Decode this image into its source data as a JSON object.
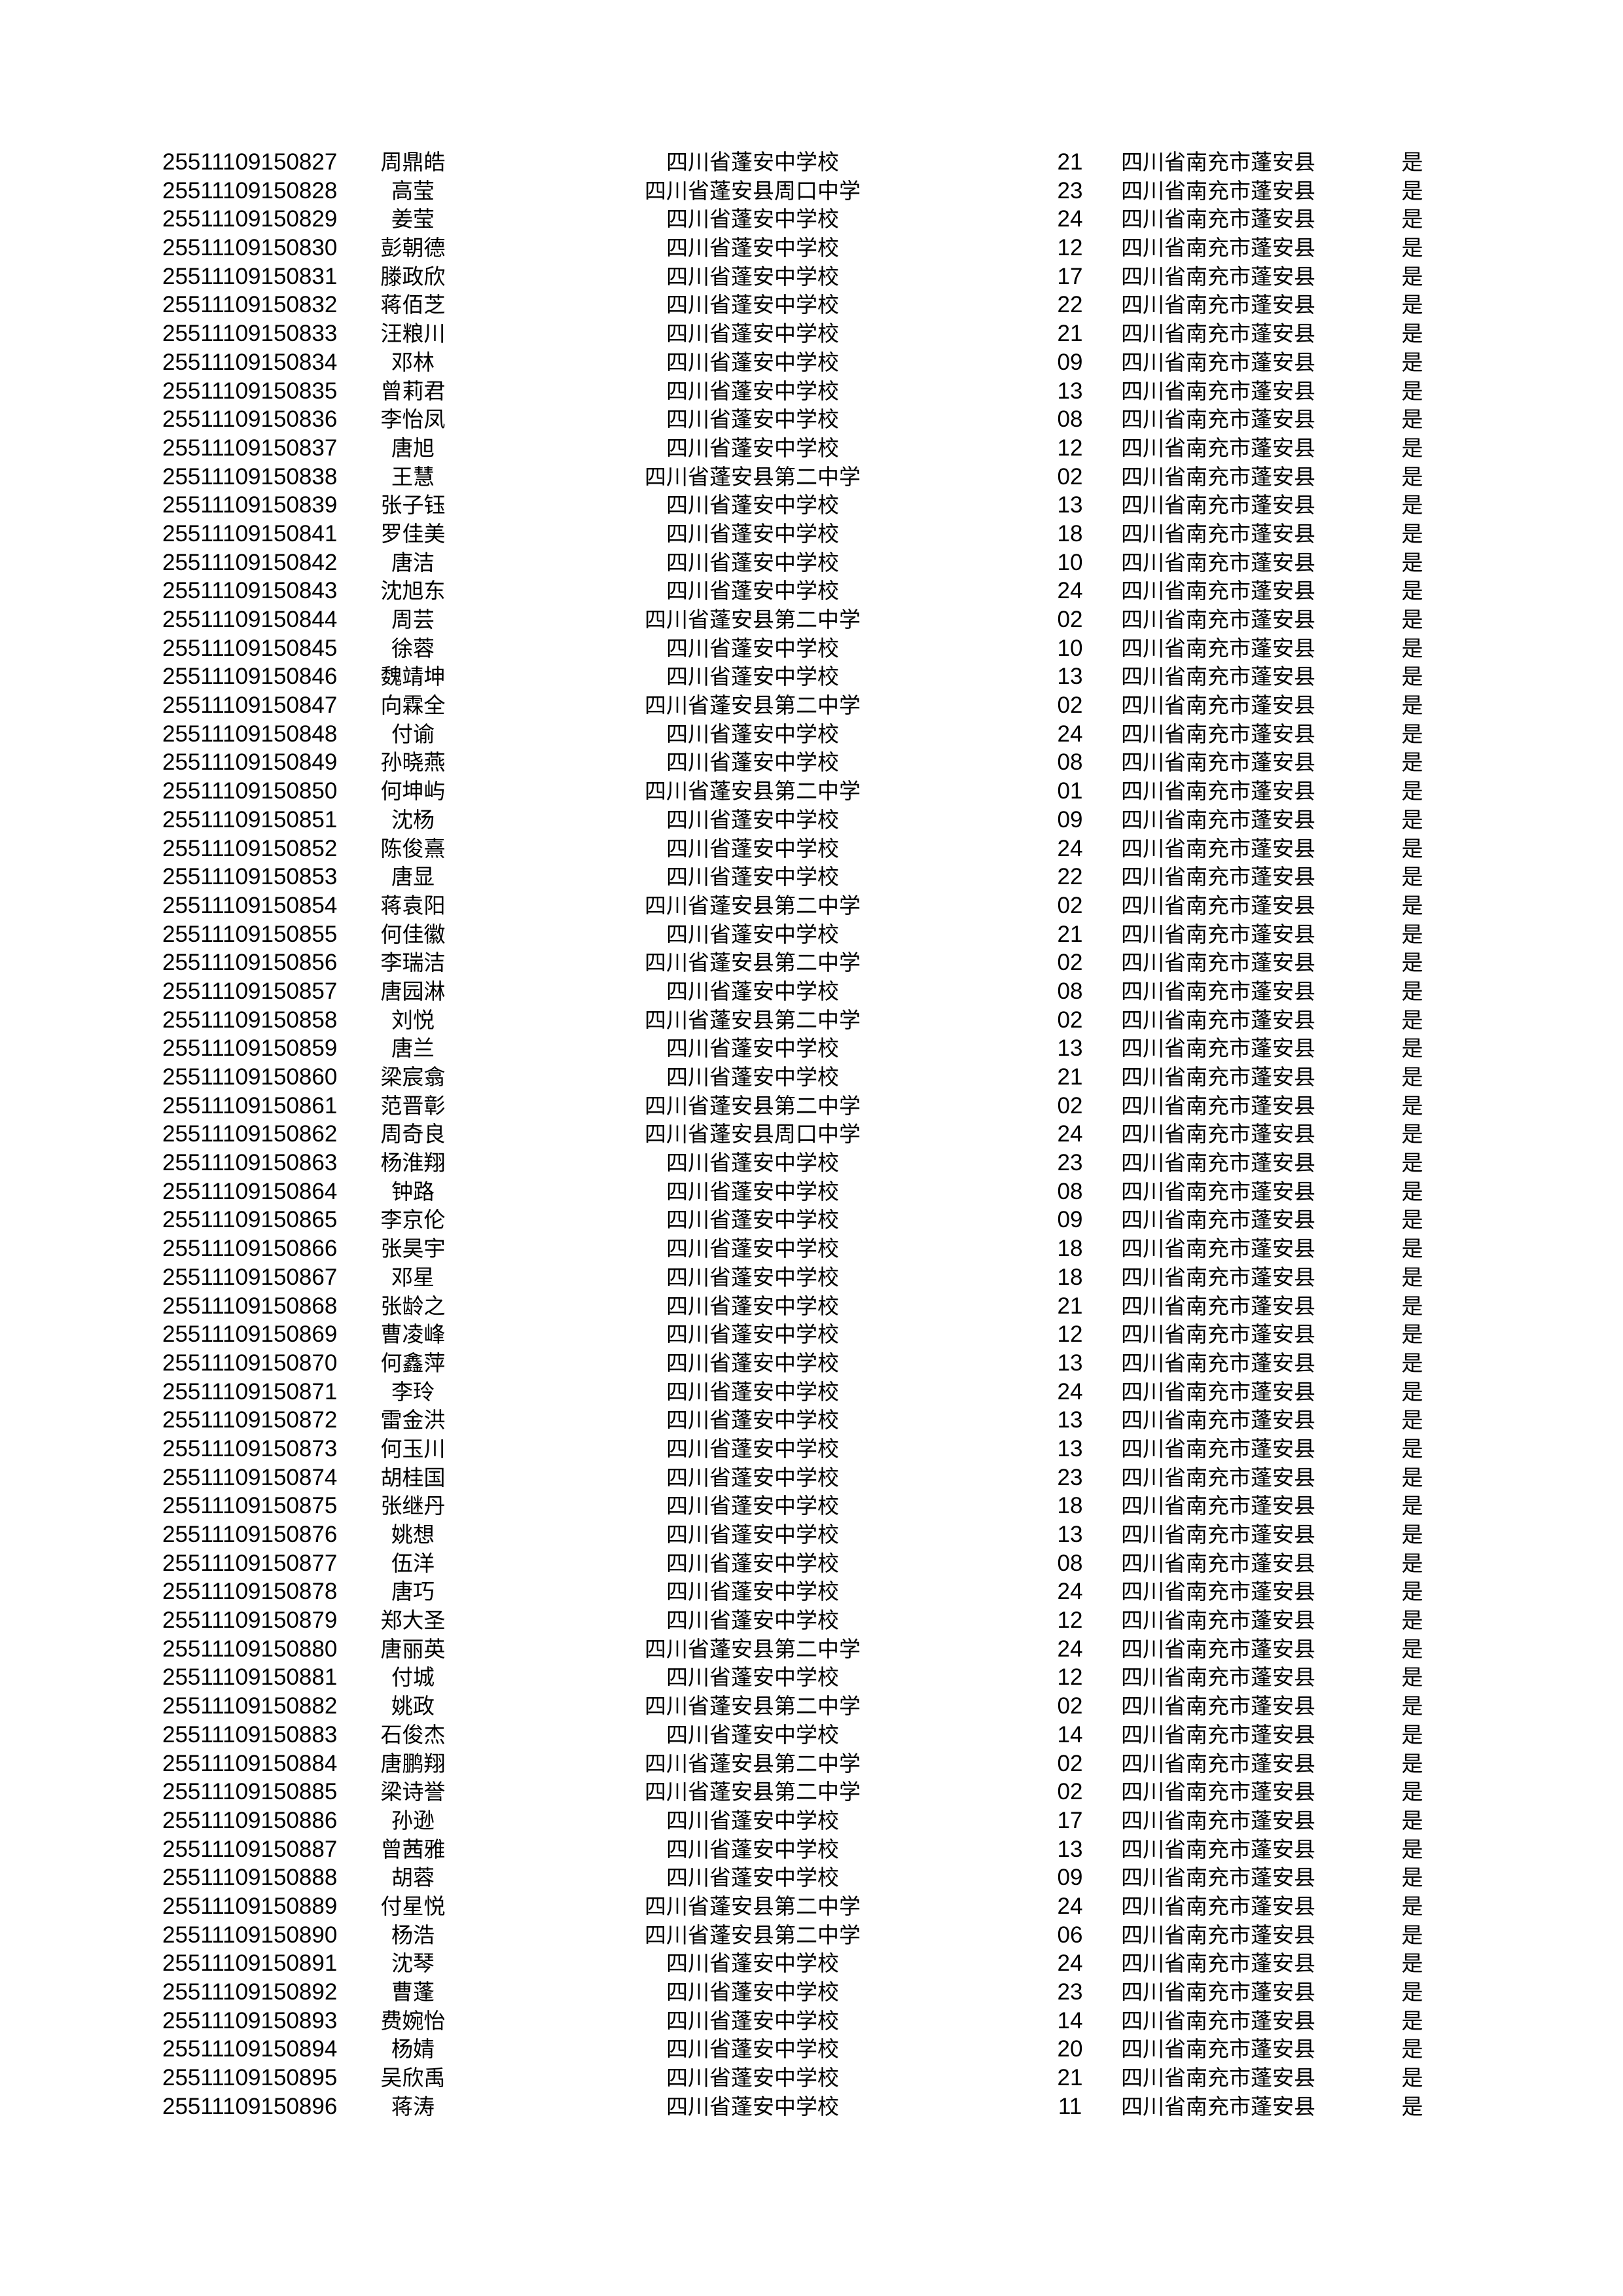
{
  "rows": [
    [
      "25511109150827",
      "周鼎皓",
      "四川省蓬安中学校",
      "21",
      "四川省南充市蓬安县",
      "是"
    ],
    [
      "25511109150828",
      "高莹",
      "四川省蓬安县周口中学",
      "23",
      "四川省南充市蓬安县",
      "是"
    ],
    [
      "25511109150829",
      "姜莹",
      "四川省蓬安中学校",
      "24",
      "四川省南充市蓬安县",
      "是"
    ],
    [
      "25511109150830",
      "彭朝德",
      "四川省蓬安中学校",
      "12",
      "四川省南充市蓬安县",
      "是"
    ],
    [
      "25511109150831",
      "滕政欣",
      "四川省蓬安中学校",
      "17",
      "四川省南充市蓬安县",
      "是"
    ],
    [
      "25511109150832",
      "蒋佰芝",
      "四川省蓬安中学校",
      "22",
      "四川省南充市蓬安县",
      "是"
    ],
    [
      "25511109150833",
      "汪粮川",
      "四川省蓬安中学校",
      "21",
      "四川省南充市蓬安县",
      "是"
    ],
    [
      "25511109150834",
      "邓林",
      "四川省蓬安中学校",
      "09",
      "四川省南充市蓬安县",
      "是"
    ],
    [
      "25511109150835",
      "曾莉君",
      "四川省蓬安中学校",
      "13",
      "四川省南充市蓬安县",
      "是"
    ],
    [
      "25511109150836",
      "李怡凤",
      "四川省蓬安中学校",
      "08",
      "四川省南充市蓬安县",
      "是"
    ],
    [
      "25511109150837",
      "唐旭",
      "四川省蓬安中学校",
      "12",
      "四川省南充市蓬安县",
      "是"
    ],
    [
      "25511109150838",
      "王慧",
      "四川省蓬安县第二中学",
      "02",
      "四川省南充市蓬安县",
      "是"
    ],
    [
      "25511109150839",
      "张子钰",
      "四川省蓬安中学校",
      "13",
      "四川省南充市蓬安县",
      "是"
    ],
    [
      "25511109150841",
      "罗佳美",
      "四川省蓬安中学校",
      "18",
      "四川省南充市蓬安县",
      "是"
    ],
    [
      "25511109150842",
      "唐洁",
      "四川省蓬安中学校",
      "10",
      "四川省南充市蓬安县",
      "是"
    ],
    [
      "25511109150843",
      "沈旭东",
      "四川省蓬安中学校",
      "24",
      "四川省南充市蓬安县",
      "是"
    ],
    [
      "25511109150844",
      "周芸",
      "四川省蓬安县第二中学",
      "02",
      "四川省南充市蓬安县",
      "是"
    ],
    [
      "25511109150845",
      "徐蓉",
      "四川省蓬安中学校",
      "10",
      "四川省南充市蓬安县",
      "是"
    ],
    [
      "25511109150846",
      "魏靖坤",
      "四川省蓬安中学校",
      "13",
      "四川省南充市蓬安县",
      "是"
    ],
    [
      "25511109150847",
      "向霖全",
      "四川省蓬安县第二中学",
      "02",
      "四川省南充市蓬安县",
      "是"
    ],
    [
      "25511109150848",
      "付谕",
      "四川省蓬安中学校",
      "24",
      "四川省南充市蓬安县",
      "是"
    ],
    [
      "25511109150849",
      "孙晓燕",
      "四川省蓬安中学校",
      "08",
      "四川省南充市蓬安县",
      "是"
    ],
    [
      "25511109150850",
      "何坤屿",
      "四川省蓬安县第二中学",
      "01",
      "四川省南充市蓬安县",
      "是"
    ],
    [
      "25511109150851",
      "沈杨",
      "四川省蓬安中学校",
      "09",
      "四川省南充市蓬安县",
      "是"
    ],
    [
      "25511109150852",
      "陈俊熹",
      "四川省蓬安中学校",
      "24",
      "四川省南充市蓬安县",
      "是"
    ],
    [
      "25511109150853",
      "唐显",
      "四川省蓬安中学校",
      "22",
      "四川省南充市蓬安县",
      "是"
    ],
    [
      "25511109150854",
      "蒋袁阳",
      "四川省蓬安县第二中学",
      "02",
      "四川省南充市蓬安县",
      "是"
    ],
    [
      "25511109150855",
      "何佳徽",
      "四川省蓬安中学校",
      "21",
      "四川省南充市蓬安县",
      "是"
    ],
    [
      "25511109150856",
      "李瑞洁",
      "四川省蓬安县第二中学",
      "02",
      "四川省南充市蓬安县",
      "是"
    ],
    [
      "25511109150857",
      "唐园淋",
      "四川省蓬安中学校",
      "08",
      "四川省南充市蓬安县",
      "是"
    ],
    [
      "25511109150858",
      "刘悦",
      "四川省蓬安县第二中学",
      "02",
      "四川省南充市蓬安县",
      "是"
    ],
    [
      "25511109150859",
      "唐兰",
      "四川省蓬安中学校",
      "13",
      "四川省南充市蓬安县",
      "是"
    ],
    [
      "25511109150860",
      "梁宸翕",
      "四川省蓬安中学校",
      "21",
      "四川省南充市蓬安县",
      "是"
    ],
    [
      "25511109150861",
      "范晋彰",
      "四川省蓬安县第二中学",
      "02",
      "四川省南充市蓬安县",
      "是"
    ],
    [
      "25511109150862",
      "周奇良",
      "四川省蓬安县周口中学",
      "24",
      "四川省南充市蓬安县",
      "是"
    ],
    [
      "25511109150863",
      "杨淮翔",
      "四川省蓬安中学校",
      "23",
      "四川省南充市蓬安县",
      "是"
    ],
    [
      "25511109150864",
      "钟路",
      "四川省蓬安中学校",
      "08",
      "四川省南充市蓬安县",
      "是"
    ],
    [
      "25511109150865",
      "李京伦",
      "四川省蓬安中学校",
      "09",
      "四川省南充市蓬安县",
      "是"
    ],
    [
      "25511109150866",
      "张昊宇",
      "四川省蓬安中学校",
      "18",
      "四川省南充市蓬安县",
      "是"
    ],
    [
      "25511109150867",
      "邓星",
      "四川省蓬安中学校",
      "18",
      "四川省南充市蓬安县",
      "是"
    ],
    [
      "25511109150868",
      "张龄之",
      "四川省蓬安中学校",
      "21",
      "四川省南充市蓬安县",
      "是"
    ],
    [
      "25511109150869",
      "曹凌峰",
      "四川省蓬安中学校",
      "12",
      "四川省南充市蓬安县",
      "是"
    ],
    [
      "25511109150870",
      "何鑫萍",
      "四川省蓬安中学校",
      "13",
      "四川省南充市蓬安县",
      "是"
    ],
    [
      "25511109150871",
      "李玲",
      "四川省蓬安中学校",
      "24",
      "四川省南充市蓬安县",
      "是"
    ],
    [
      "25511109150872",
      "雷金洪",
      "四川省蓬安中学校",
      "13",
      "四川省南充市蓬安县",
      "是"
    ],
    [
      "25511109150873",
      "何玉川",
      "四川省蓬安中学校",
      "13",
      "四川省南充市蓬安县",
      "是"
    ],
    [
      "25511109150874",
      "胡桂国",
      "四川省蓬安中学校",
      "23",
      "四川省南充市蓬安县",
      "是"
    ],
    [
      "25511109150875",
      "张继丹",
      "四川省蓬安中学校",
      "18",
      "四川省南充市蓬安县",
      "是"
    ],
    [
      "25511109150876",
      "姚想",
      "四川省蓬安中学校",
      "13",
      "四川省南充市蓬安县",
      "是"
    ],
    [
      "25511109150877",
      "伍洋",
      "四川省蓬安中学校",
      "08",
      "四川省南充市蓬安县",
      "是"
    ],
    [
      "25511109150878",
      "唐巧",
      "四川省蓬安中学校",
      "24",
      "四川省南充市蓬安县",
      "是"
    ],
    [
      "25511109150879",
      "郑大圣",
      "四川省蓬安中学校",
      "12",
      "四川省南充市蓬安县",
      "是"
    ],
    [
      "25511109150880",
      "唐丽英",
      "四川省蓬安县第二中学",
      "24",
      "四川省南充市蓬安县",
      "是"
    ],
    [
      "25511109150881",
      "付城",
      "四川省蓬安中学校",
      "12",
      "四川省南充市蓬安县",
      "是"
    ],
    [
      "25511109150882",
      "姚政",
      "四川省蓬安县第二中学",
      "02",
      "四川省南充市蓬安县",
      "是"
    ],
    [
      "25511109150883",
      "石俊杰",
      "四川省蓬安中学校",
      "14",
      "四川省南充市蓬安县",
      "是"
    ],
    [
      "25511109150884",
      "唐鹏翔",
      "四川省蓬安县第二中学",
      "02",
      "四川省南充市蓬安县",
      "是"
    ],
    [
      "25511109150885",
      "梁诗誉",
      "四川省蓬安县第二中学",
      "02",
      "四川省南充市蓬安县",
      "是"
    ],
    [
      "25511109150886",
      "孙逊",
      "四川省蓬安中学校",
      "17",
      "四川省南充市蓬安县",
      "是"
    ],
    [
      "25511109150887",
      "曾茜雅",
      "四川省蓬安中学校",
      "13",
      "四川省南充市蓬安县",
      "是"
    ],
    [
      "25511109150888",
      "胡蓉",
      "四川省蓬安中学校",
      "09",
      "四川省南充市蓬安县",
      "是"
    ],
    [
      "25511109150889",
      "付星悦",
      "四川省蓬安县第二中学",
      "24",
      "四川省南充市蓬安县",
      "是"
    ],
    [
      "25511109150890",
      "杨浩",
      "四川省蓬安县第二中学",
      "06",
      "四川省南充市蓬安县",
      "是"
    ],
    [
      "25511109150891",
      "沈琴",
      "四川省蓬安中学校",
      "24",
      "四川省南充市蓬安县",
      "是"
    ],
    [
      "25511109150892",
      "曹蓬",
      "四川省蓬安中学校",
      "23",
      "四川省南充市蓬安县",
      "是"
    ],
    [
      "25511109150893",
      "费婉怡",
      "四川省蓬安中学校",
      "14",
      "四川省南充市蓬安县",
      "是"
    ],
    [
      "25511109150894",
      "杨婧",
      "四川省蓬安中学校",
      "20",
      "四川省南充市蓬安县",
      "是"
    ],
    [
      "25511109150895",
      "吴欣禹",
      "四川省蓬安中学校",
      "21",
      "四川省南充市蓬安县",
      "是"
    ],
    [
      "25511109150896",
      "蒋涛",
      "四川省蓬安中学校",
      "11",
      "四川省南充市蓬安县",
      "是"
    ]
  ]
}
